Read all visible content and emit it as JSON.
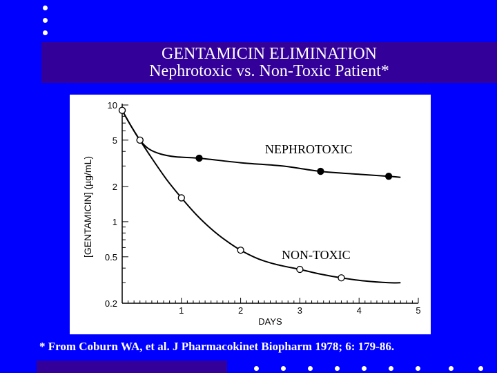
{
  "slide": {
    "title_line1": "GENTAMICIN ELIMINATION",
    "title_line2": "Nephrotoxic vs. Non-Toxic Patient*",
    "citation": "* From Coburn WA, et al. J Pharmacokinet Biopharm 1978; 6: 179-86.",
    "colors": {
      "background": "#0000ff",
      "bar": "#330099",
      "text": "#ffffff"
    }
  },
  "chart_data": {
    "type": "line",
    "xlabel": "DAYS",
    "ylabel": "[GENTAMICIN] (µg/mL)",
    "xlim": [
      0,
      5
    ],
    "ylim": [
      0.2,
      10
    ],
    "yscale": "log",
    "xticks": [
      "1",
      "2",
      "3",
      "4",
      "5"
    ],
    "yticks": [
      {
        "value": 10,
        "label": "10"
      },
      {
        "value": 5,
        "label": "5"
      },
      {
        "value": 2,
        "label": "2"
      },
      {
        "value": 1,
        "label": "1"
      },
      {
        "value": 0.5,
        "label": "0.5"
      },
      {
        "value": 0.2,
        "label": "0.2"
      }
    ],
    "grid": false,
    "series": [
      {
        "name": "NEPHROTOXIC",
        "marker": "filled-circle",
        "points": [
          [
            0,
            9
          ],
          [
            0.3,
            5
          ],
          [
            1.3,
            3.5
          ],
          [
            3.35,
            2.7
          ],
          [
            4.5,
            2.45
          ]
        ],
        "curve": [
          [
            0,
            9
          ],
          [
            0.15,
            6.6
          ],
          [
            0.3,
            5
          ],
          [
            0.45,
            4.2
          ],
          [
            0.65,
            3.8
          ],
          [
            0.9,
            3.6
          ],
          [
            1.3,
            3.5
          ],
          [
            2,
            3.2
          ],
          [
            2.7,
            3.0
          ],
          [
            3.35,
            2.7
          ],
          [
            4,
            2.55
          ],
          [
            4.5,
            2.45
          ],
          [
            4.7,
            2.4
          ]
        ]
      },
      {
        "name": "NON-TOXIC",
        "marker": "open-circle",
        "points": [
          [
            0,
            9
          ],
          [
            0.3,
            5
          ],
          [
            1,
            1.6
          ],
          [
            2,
            0.57
          ],
          [
            3,
            0.39
          ],
          [
            3.7,
            0.33
          ]
        ],
        "curve": [
          [
            0,
            9
          ],
          [
            0.15,
            6.6
          ],
          [
            0.3,
            5
          ],
          [
            0.5,
            3.5
          ],
          [
            0.75,
            2.3
          ],
          [
            1,
            1.6
          ],
          [
            1.25,
            1.15
          ],
          [
            1.5,
            0.87
          ],
          [
            1.75,
            0.69
          ],
          [
            2,
            0.57
          ],
          [
            2.3,
            0.48
          ],
          [
            2.6,
            0.43
          ],
          [
            3,
            0.39
          ],
          [
            3.35,
            0.355
          ],
          [
            3.7,
            0.33
          ],
          [
            4.1,
            0.31
          ],
          [
            4.5,
            0.3
          ],
          [
            4.7,
            0.3
          ]
        ]
      }
    ],
    "annotations": [
      "NEPHROTOXIC",
      "NON-TOXIC"
    ]
  }
}
